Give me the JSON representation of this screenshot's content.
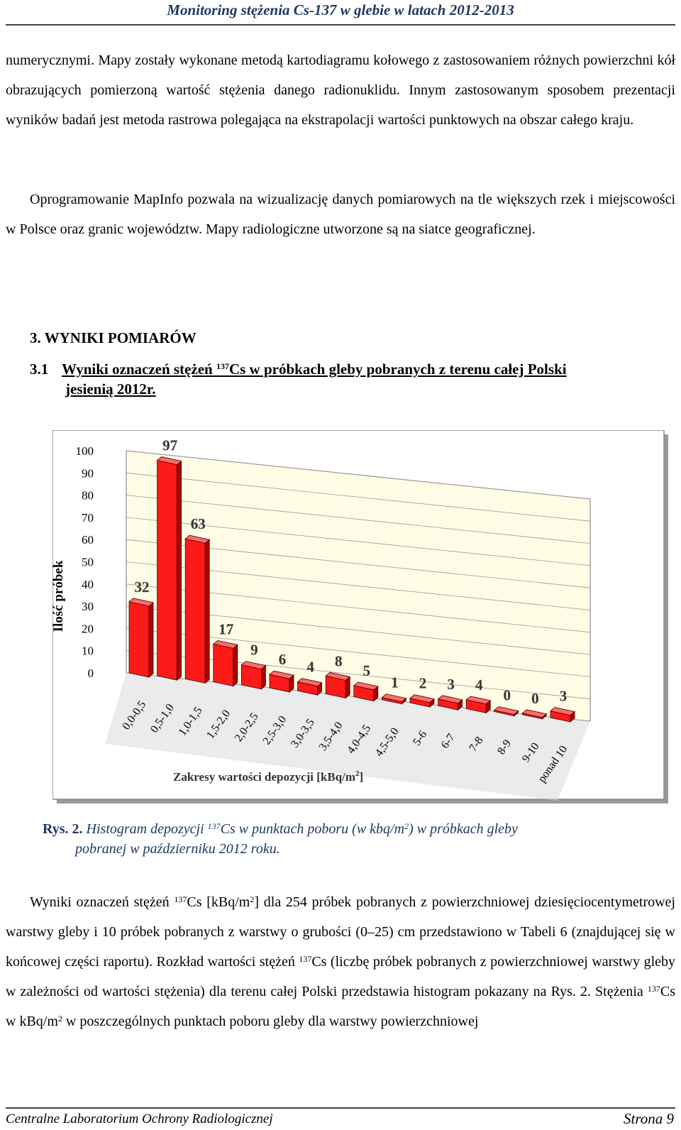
{
  "header": {
    "title": "Monitoring stężenia Cs-137 w glebie w latach 2012-2013"
  },
  "paragraphs": {
    "p1": "numerycznymi. Mapy zostały wykonane metodą kartodiagramu kołowego z zastosowaniem różnych powierzchni kół obrazujących pomierzoną wartość stężenia danego radionuklidu. Innym zastosowanym sposobem prezentacji wyników badań jest metoda rastrowa polegająca na ekstrapolacji wartości punktowych na obszar całego kraju.",
    "p2": "Oprogramowanie MapInfo pozwala na wizualizację danych pomiarowych na tle większych rzek i miejscowości w Polsce oraz granic województw. Mapy radiologiczne utworzone są na siatce geograficznej.",
    "p3": {
      "a": "Wyniki oznaczeń stężeń ",
      "sup1": "137",
      "b": "Cs [kBq/m",
      "sup2": "2",
      "c": "] dla 254 próbek pobranych z powierzchniowej dziesięciocentymetrowej warstwy gleby i 10 próbek pobranych z warstwy o grubości (0–25) cm przedstawiono w Tabeli 6 (znajdującej się w końcowej części raportu). Rozkład wartości stężeń ",
      "sup3": "137",
      "d": "Cs (liczbę próbek pobranych z powierzchniowej warstwy gleby w zależności od wartości stężenia) dla terenu całej Polski przedstawia histogram pokazany na Rys. 2. Stężenia ",
      "sup4": "137",
      "e": "Cs w kBq/m",
      "sup5": "2",
      "f": " w poszczególnych punktach poboru gleby dla warstwy powierzchniowej"
    }
  },
  "section": {
    "h1": "3. WYNIKI POMIARÓW",
    "h2_num": "3.1",
    "h2_a": "Wyniki oznaczeń stężeń ",
    "h2_sup": "137",
    "h2_b": "Cs  w próbkach gleby pobranych z terenu całej Polski",
    "h2_line2": "jesienią 2012r."
  },
  "caption": {
    "label": "Rys. 2.",
    "a": " Histogram depozycji ",
    "sup1": "137",
    "b": "Cs w punktach poboru (w kbq/m",
    "sup2": "2",
    "c": ") w próbkach gleby",
    "line2": "pobranej w październiku 2012 roku."
  },
  "chart_data": {
    "type": "bar",
    "categories": [
      "0,0-0,5",
      "0,5-1,0",
      "1,0-1,5",
      "1,5-2,0",
      "2,0-2,5",
      "2,5-3,0",
      "3,0-3,5",
      "3,5-4,0",
      "4,0-4,5",
      "4,5-5,0",
      "5-6",
      "6-7",
      "7-8",
      "8-9",
      "9-10",
      "ponad 10"
    ],
    "values": [
      32,
      97,
      63,
      17,
      9,
      6,
      4,
      8,
      5,
      1,
      2,
      3,
      4,
      0,
      0,
      3
    ],
    "ylabel": "Ilość próbek",
    "xlabel": "Zakresy wartości depozycji [kBq/m",
    "xlabel_sup": "2",
    "xlabel_end": "]",
    "yticks": [
      "0",
      "10",
      "20",
      "30",
      "40",
      "50",
      "60",
      "70",
      "80",
      "90",
      "100"
    ],
    "ylim": [
      0,
      100
    ],
    "grid": true,
    "colors": {
      "bar": "#ff1a1a",
      "bar_top": "#ff6b6b",
      "bar_side": "#a80000",
      "wall": "#fffde6",
      "floor": "#d8d8d8"
    }
  },
  "footer": {
    "left": "Centralne Laboratorium Ochrony Radiologicznej",
    "right": "Strona 9"
  }
}
